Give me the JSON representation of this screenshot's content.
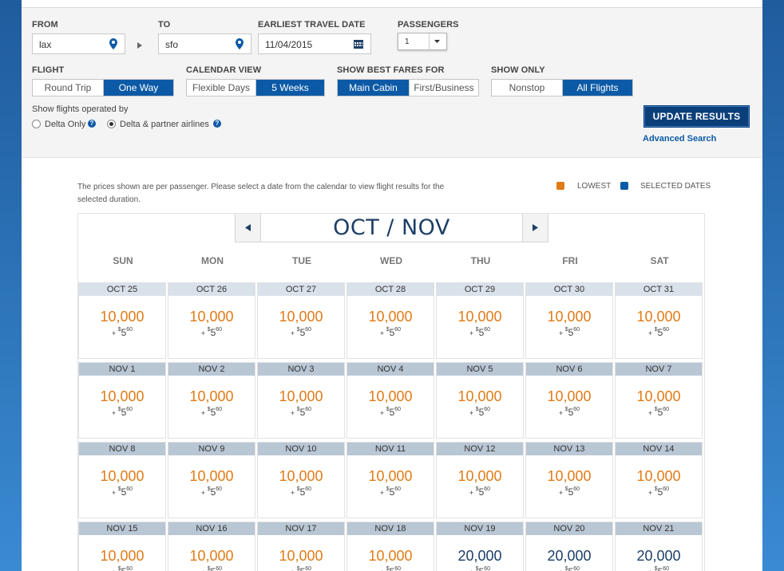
{
  "search": {
    "from_label": "FROM",
    "from_value": "lax",
    "to_label": "TO",
    "to_value": "sfo",
    "date_label": "EARLIEST TRAVEL DATE",
    "date_value": "11/04/2015",
    "passengers_label": "PASSENGERS",
    "passengers_value": "1",
    "flight_label": "FLIGHT",
    "flight_options": [
      "Round Trip",
      "One Way"
    ],
    "flight_selected": "One Way",
    "calendar_label": "CALENDAR VIEW",
    "calendar_options": [
      "Flexible Days",
      "5 Weeks"
    ],
    "calendar_selected": "5 Weeks",
    "fares_label": "SHOW BEST FARES FOR",
    "fares_options": [
      "Main Cabin",
      "First/Business"
    ],
    "fares_selected": "Main Cabin",
    "showonly_label": "SHOW ONLY",
    "showonly_options": [
      "Nonstop",
      "All Flights"
    ],
    "showonly_selected": "All Flights",
    "operated_label": "Show flights operated by",
    "operated_options": [
      "Delta Only",
      "Delta & partner airlines"
    ],
    "operated_selected": "Delta & partner airlines",
    "update_label": "UPDATE RESULTS",
    "advanced_label": "Advanced Search",
    "icons": {
      "location": "map-pin-icon",
      "date": "calendar-icon",
      "arrow": "right-triangle-icon",
      "help": "question-icon"
    }
  },
  "results": {
    "intro": "The prices shown are per passenger. Please select a date from the calendar to view flight results for the selected duration.",
    "legend_lowest": "LOWEST",
    "legend_selected": "SELECTED DATES",
    "colors": {
      "lowest": "#e07b16",
      "selected": "#0c5aa6",
      "accent": "#0b3f7a"
    },
    "month_title": "OCT / NOV",
    "weekdays": [
      "SUN",
      "MON",
      "TUE",
      "WED",
      "THU",
      "FRI",
      "SAT"
    ],
    "fee_prefix": "+",
    "fee_dollar": "$",
    "fee_main": "5",
    "fee_cents": "60",
    "weeks": [
      {
        "days": [
          {
            "date": "OCT 25",
            "miles": "10,000",
            "lowest": true
          },
          {
            "date": "OCT 26",
            "miles": "10,000",
            "lowest": true
          },
          {
            "date": "OCT 27",
            "miles": "10,000",
            "lowest": true
          },
          {
            "date": "OCT 28",
            "miles": "10,000",
            "lowest": true
          },
          {
            "date": "OCT 29",
            "miles": "10,000",
            "lowest": true
          },
          {
            "date": "OCT 30",
            "miles": "10,000",
            "lowest": true
          },
          {
            "date": "OCT 31",
            "miles": "10,000",
            "lowest": true
          }
        ]
      },
      {
        "days": [
          {
            "date": "NOV 1",
            "miles": "10,000",
            "lowest": true
          },
          {
            "date": "NOV 2",
            "miles": "10,000",
            "lowest": true
          },
          {
            "date": "NOV 3",
            "miles": "10,000",
            "lowest": true
          },
          {
            "date": "NOV 4",
            "miles": "10,000",
            "lowest": true
          },
          {
            "date": "NOV 5",
            "miles": "10,000",
            "lowest": true
          },
          {
            "date": "NOV 6",
            "miles": "10,000",
            "lowest": true
          },
          {
            "date": "NOV 7",
            "miles": "10,000",
            "lowest": true
          }
        ]
      },
      {
        "days": [
          {
            "date": "NOV 8",
            "miles": "10,000",
            "lowest": true
          },
          {
            "date": "NOV 9",
            "miles": "10,000",
            "lowest": true
          },
          {
            "date": "NOV 10",
            "miles": "10,000",
            "lowest": true
          },
          {
            "date": "NOV 11",
            "miles": "10,000",
            "lowest": true
          },
          {
            "date": "NOV 12",
            "miles": "10,000",
            "lowest": true
          },
          {
            "date": "NOV 13",
            "miles": "10,000",
            "lowest": true
          },
          {
            "date": "NOV 14",
            "miles": "10,000",
            "lowest": true
          }
        ]
      },
      {
        "days": [
          {
            "date": "NOV 15",
            "miles": "10,000",
            "lowest": true
          },
          {
            "date": "NOV 16",
            "miles": "10,000",
            "lowest": true
          },
          {
            "date": "NOV 17",
            "miles": "10,000",
            "lowest": true
          },
          {
            "date": "NOV 18",
            "miles": "10,000",
            "lowest": true
          },
          {
            "date": "NOV 19",
            "miles": "20,000",
            "lowest": false
          },
          {
            "date": "NOV 20",
            "miles": "20,000",
            "lowest": false
          },
          {
            "date": "NOV 21",
            "miles": "20,000",
            "lowest": false
          }
        ]
      }
    ]
  }
}
